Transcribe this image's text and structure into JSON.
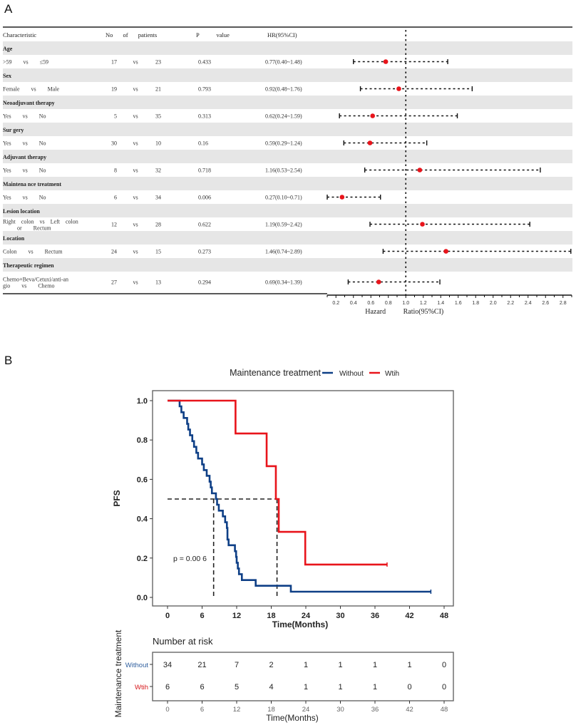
{
  "panels": {
    "a_label": "A",
    "b_label": "B"
  },
  "chart_data": [
    {
      "type": "table",
      "subtype": "forest-plot",
      "columns": [
        "Characteristic",
        "No of patients",
        "P value",
        "HR(95%CI)"
      ],
      "xlabel": "Hazard Ratio(95%CI)",
      "x_ticks": [
        0.2,
        0.4,
        0.6,
        0.8,
        1.0,
        1.2,
        1.4,
        1.6,
        1.8,
        2.0,
        2.2,
        2.4,
        2.6,
        2.8
      ],
      "xlim": [
        0.1,
        2.9
      ],
      "reference_line": 1.0,
      "groups": [
        {
          "name": "Age",
          "comparison": ">59 vs ≤59",
          "n1": 17,
          "n2": 23,
          "p": "0.433",
          "hr_text": "0.77(0.40~1.48)",
          "hr": 0.77,
          "lo": 0.4,
          "hi": 1.48
        },
        {
          "name": "Sex",
          "comparison": "Female vs Male",
          "n1": 19,
          "n2": 21,
          "p": "0.793",
          "hr_text": "0.92(0.48~1.76)",
          "hr": 0.92,
          "lo": 0.48,
          "hi": 1.76
        },
        {
          "name": "Neoadjuvant therapy",
          "comparison": "Yes vs No",
          "n1": 5,
          "n2": 35,
          "p": "0.313",
          "hr_text": "0.62(0.24~1.59)",
          "hr": 0.62,
          "lo": 0.24,
          "hi": 1.59
        },
        {
          "name": "Sur gery",
          "comparison": "Yes vs No",
          "n1": 30,
          "n2": 10,
          "p": "0.16",
          "hr_text": "0.59(0.29~1.24)",
          "hr": 0.59,
          "lo": 0.29,
          "hi": 1.24
        },
        {
          "name": "Adjuvant therapy",
          "comparison": "Yes vs No",
          "n1": 8,
          "n2": 32,
          "p": "0.718",
          "hr_text": "1.16(0.53~2.54)",
          "hr": 1.16,
          "lo": 0.53,
          "hi": 2.54
        },
        {
          "name": "Maintena nce treatment",
          "comparison": "Yes vs No",
          "n1": 6,
          "n2": 34,
          "p": "0.006",
          "hr_text": "0.27(0.10~0.71)",
          "hr": 0.27,
          "lo": 0.1,
          "hi": 0.71
        },
        {
          "name": "Lesion location",
          "comparison": "Right colon vs Left colon or Rectum",
          "comparison_lines": [
            "Right colon vs Left colon",
            "or Rectum"
          ],
          "n1": 12,
          "n2": 28,
          "p": "0.622",
          "hr_text": "1.19(0.59~2.42)",
          "hr": 1.19,
          "lo": 0.59,
          "hi": 2.42
        },
        {
          "name": "Location",
          "comparison": "Colon vs Rectum",
          "n1": 24,
          "n2": 15,
          "p": "0.273",
          "hr_text": "1.46(0.74~2.89)",
          "hr": 1.46,
          "lo": 0.74,
          "hi": 2.89
        },
        {
          "name": "Therapeutic regimen",
          "comparison": "Chemo+Beva/Cetuxi/anti-angio vs Chemo",
          "comparison_lines": [
            "Chemo+Beva/Cetuxi/anti-an",
            "gio vs Chemo"
          ],
          "n1": 27,
          "n2": 13,
          "p": "0.294",
          "hr_text": "0.69(0.34~1.39)",
          "hr": 0.69,
          "lo": 0.34,
          "hi": 1.39
        }
      ],
      "vs_label": "vs",
      "point_color": "#e8141b"
    },
    {
      "type": "line",
      "subtype": "kaplan-meier",
      "legend_title": "Maintenance treatment",
      "legend_position": "top",
      "xlabel": "Time(Months)",
      "ylabel": "PFS",
      "xlim": [
        0,
        48
      ],
      "ylim": [
        0,
        1
      ],
      "x_ticks": [
        0,
        6,
        12,
        18,
        24,
        30,
        36,
        42,
        48
      ],
      "y_ticks": [
        "0.0",
        "0.2",
        "0.4",
        "0.6",
        "0.8",
        "1.0"
      ],
      "annotation": "p = 0.00 6",
      "median_line_y": 0.5,
      "medians": [
        8,
        19
      ],
      "series": [
        {
          "name": "Without",
          "color": "#0e3f86",
          "steps": [
            [
              0,
              1.0
            ],
            [
              2.0,
              1.0
            ],
            [
              2.1,
              0.971
            ],
            [
              2.4,
              0.941
            ],
            [
              2.8,
              0.912
            ],
            [
              3.4,
              0.882
            ],
            [
              3.6,
              0.853
            ],
            [
              3.9,
              0.824
            ],
            [
              4.3,
              0.794
            ],
            [
              4.6,
              0.765
            ],
            [
              5.0,
              0.735
            ],
            [
              5.3,
              0.706
            ],
            [
              6.0,
              0.676
            ],
            [
              6.3,
              0.647
            ],
            [
              6.8,
              0.618
            ],
            [
              7.3,
              0.588
            ],
            [
              7.5,
              0.559
            ],
            [
              7.7,
              0.529
            ],
            [
              8.4,
              0.5
            ],
            [
              8.6,
              0.471
            ],
            [
              8.9,
              0.441
            ],
            [
              9.6,
              0.412
            ],
            [
              10.0,
              0.382
            ],
            [
              10.3,
              0.353
            ],
            [
              10.4,
              0.294
            ],
            [
              10.6,
              0.265
            ],
            [
              11.7,
              0.235
            ],
            [
              11.9,
              0.206
            ],
            [
              12.0,
              0.176
            ],
            [
              12.2,
              0.147
            ],
            [
              12.4,
              0.118
            ],
            [
              12.9,
              0.088
            ],
            [
              15.3,
              0.059
            ],
            [
              21.4,
              0.029
            ],
            [
              45.7,
              0.029
            ]
          ],
          "censor_at": 45.7
        },
        {
          "name": "Wtih",
          "color": "#e8141b",
          "steps": [
            [
              0,
              1.0
            ],
            [
              11.8,
              1.0
            ],
            [
              11.8,
              0.833
            ],
            [
              17.2,
              0.833
            ],
            [
              17.2,
              0.667
            ],
            [
              18.8,
              0.667
            ],
            [
              18.8,
              0.5
            ],
            [
              19.3,
              0.5
            ],
            [
              19.3,
              0.333
            ],
            [
              23.9,
              0.333
            ],
            [
              23.9,
              0.167
            ],
            [
              38.1,
              0.167
            ]
          ],
          "censor_at": 38.1
        }
      ]
    },
    {
      "type": "table",
      "subtype": "risk-table",
      "title": "Number at risk",
      "ylabel": "Maintenance treatment",
      "xlabel": "Time(Months)",
      "x_ticks": [
        0,
        6,
        12,
        18,
        24,
        30,
        36,
        42,
        48
      ],
      "rows": [
        {
          "name": "Without",
          "color": "#2f5f9e",
          "values": [
            34,
            21,
            7,
            2,
            1,
            1,
            1,
            1,
            0
          ]
        },
        {
          "name": "Wtih",
          "color": "#d7191c",
          "values": [
            6,
            6,
            5,
            4,
            1,
            1,
            1,
            0,
            0
          ]
        }
      ]
    }
  ]
}
